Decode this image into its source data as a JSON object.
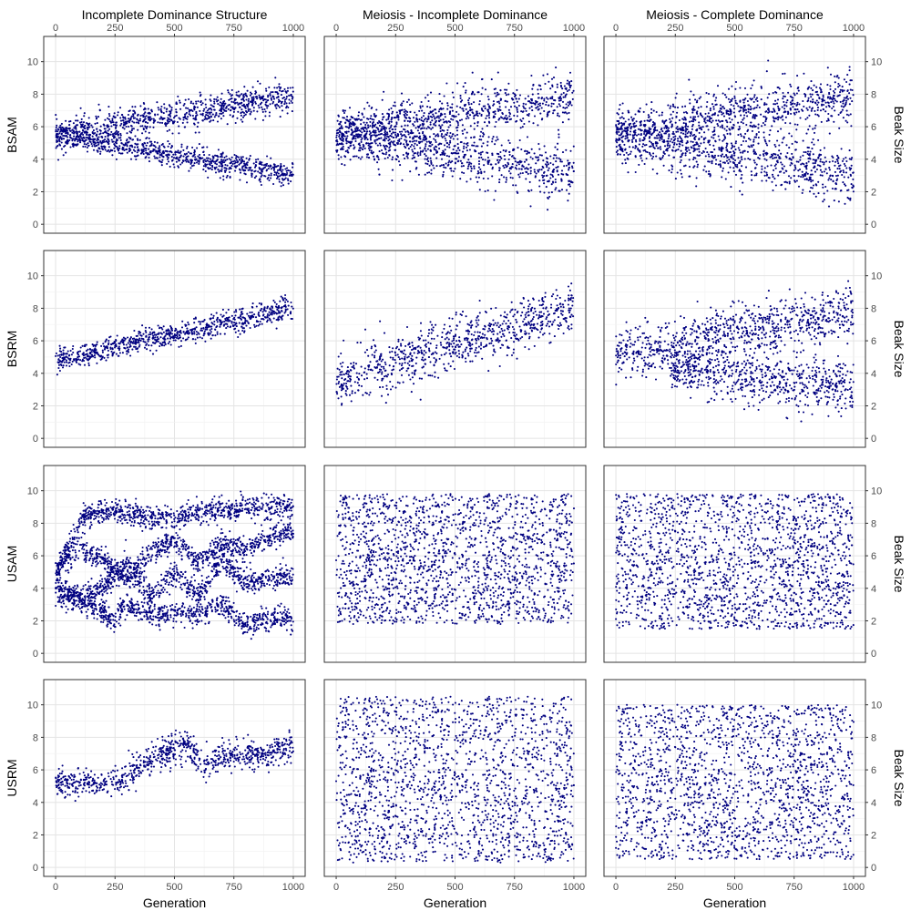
{
  "chart_data": {
    "type": "scatter",
    "facet": "grid",
    "rows": [
      "BSAM",
      "BSRM",
      "USAM",
      "USRM"
    ],
    "columns": [
      "Incomplete Dominance Structure",
      "Meiosis - Incomplete Dominance",
      "Meiosis - Complete Dominance"
    ],
    "xlabel": "Generation",
    "ylabel_right": "Beak Size",
    "xlim": [
      0,
      1000
    ],
    "ylim": [
      0,
      11
    ],
    "x_ticks": [
      0,
      250,
      500,
      750,
      1000
    ],
    "y_ticks": [
      0,
      2,
      4,
      6,
      8,
      10
    ],
    "grid": true,
    "point_color": "#000080",
    "panels": [
      {
        "row": "BSAM",
        "column": "Incomplete Dominance Structure",
        "bands": [
          {
            "x": [
              0,
              1000
            ],
            "y0": [
              5.5,
              7.9
            ],
            "y1": [
              5.5,
              7.9
            ],
            "spread": 0.45
          },
          {
            "x": [
              0,
              1000
            ],
            "y0": [
              5.5,
              3.0
            ],
            "y1": [
              5.5,
              3.0
            ],
            "spread": 0.35
          }
        ]
      },
      {
        "row": "BSAM",
        "column": "Meiosis - Incomplete Dominance",
        "bands": [
          {
            "x": [
              0,
              1000
            ],
            "y0": [
              5.5,
              7.8
            ],
            "y1": [
              5.5,
              7.8
            ],
            "spread": 0.8
          },
          {
            "x": [
              0,
              1000
            ],
            "y0": [
              5.5,
              3.1
            ],
            "y1": [
              5.5,
              3.1
            ],
            "spread": 0.8
          }
        ]
      },
      {
        "row": "BSAM",
        "column": "Meiosis - Complete Dominance",
        "bands": [
          {
            "x": [
              0,
              1000
            ],
            "y0": [
              5.5,
              7.9
            ],
            "y1": [
              5.5,
              7.9
            ],
            "spread": 0.8
          },
          {
            "x": [
              0,
              1000
            ],
            "y0": [
              5.5,
              3.0
            ],
            "y1": [
              5.5,
              3.0
            ],
            "spread": 0.85
          }
        ]
      },
      {
        "row": "BSRM",
        "column": "Incomplete Dominance Structure",
        "bands": [
          {
            "x": [
              0,
              1000
            ],
            "y0": [
              4.8,
              8.0
            ],
            "y1": [
              4.8,
              8.0
            ],
            "spread": 0.35
          }
        ]
      },
      {
        "row": "BSRM",
        "column": "Meiosis - Incomplete Dominance",
        "bands": [
          {
            "x": [
              0,
              1000
            ],
            "y0": [
              3.5,
              8.0
            ],
            "y1": [
              3.5,
              8.0
            ],
            "spread": 0.8
          }
        ]
      },
      {
        "row": "BSRM",
        "column": "Meiosis - Complete Dominance",
        "bands": [
          {
            "x": [
              0,
              1000
            ],
            "y0": [
              5.0,
              8.0
            ],
            "y1": [
              5.0,
              8.0
            ],
            "spread": 0.75
          },
          {
            "x": [
              230,
              1000
            ],
            "y0": [
              4.3,
              3.0
            ],
            "y1": [
              4.3,
              3.0
            ],
            "spread": 0.8
          }
        ]
      },
      {
        "row": "USAM",
        "column": "Incomplete Dominance Structure",
        "bands": [
          {
            "x": [
              0,
              120,
              250,
              400,
              550,
              650,
              750,
              850,
              1000
            ],
            "y0": [
              5.0,
              8.5,
              8.8,
              8.3,
              8.6,
              8.8,
              8.9,
              9.0,
              9.0
            ],
            "spread": 0.35
          },
          {
            "x": [
              0,
              100,
              200,
              300,
              400,
              500,
              600,
              700,
              800,
              900,
              1000
            ],
            "y0": [
              5.0,
              6.5,
              5.8,
              4.5,
              6.2,
              7.0,
              5.5,
              6.8,
              6.3,
              7.2,
              7.5
            ],
            "spread": 0.35
          },
          {
            "x": [
              0,
              100,
              200,
              300,
              400,
              500,
              600,
              700,
              800,
              900,
              1000
            ],
            "y0": [
              4.0,
              3.5,
              4.0,
              5.5,
              3.5,
              5.0,
              3.5,
              5.8,
              4.3,
              4.6,
              4.8
            ],
            "spread": 0.35
          },
          {
            "x": [
              0,
              150,
              250,
              300,
              350,
              420,
              500,
              600,
              700,
              800,
              900,
              1000
            ],
            "y0": [
              3.8,
              3.0,
              2.0,
              3.2,
              2.5,
              2.2,
              2.6,
              2.4,
              3.0,
              1.6,
              2.2,
              2.0
            ],
            "spread": 0.35
          }
        ]
      },
      {
        "row": "USAM",
        "column": "Meiosis - Incomplete Dominance",
        "bands": [
          {
            "x": [
              0,
              1000
            ],
            "y0": [
              1.8,
              2.0
            ],
            "y1": [
              9.8,
              9.8
            ],
            "spread": 0.0
          }
        ]
      },
      {
        "row": "USAM",
        "column": "Meiosis - Complete Dominance",
        "bands": [
          {
            "x": [
              0,
              1000
            ],
            "y0": [
              1.5,
              1.5
            ],
            "y1": [
              9.8,
              9.8
            ],
            "spread": 0.0
          }
        ]
      },
      {
        "row": "USRM",
        "column": "Incomplete Dominance Structure",
        "bands": [
          {
            "x": [
              0,
              100,
              250,
              350,
              450,
              550,
              620,
              700,
              800,
              900,
              1000
            ],
            "y0": [
              5.2,
              5.2,
              5.3,
              6.0,
              7.0,
              7.5,
              6.3,
              6.8,
              6.9,
              7.0,
              7.5
            ],
            "spread": 0.45
          }
        ]
      },
      {
        "row": "USRM",
        "column": "Meiosis - Incomplete Dominance",
        "bands": [
          {
            "x": [
              0,
              1000
            ],
            "y0": [
              0.3,
              0.3
            ],
            "y1": [
              10.5,
              10.5
            ],
            "spread": 0.0
          }
        ]
      },
      {
        "row": "USRM",
        "column": "Meiosis - Complete Dominance",
        "bands": [
          {
            "x": [
              0,
              1000
            ],
            "y0": [
              0.5,
              0.5
            ],
            "y1": [
              10.0,
              10.0
            ],
            "spread": 0.0
          }
        ]
      }
    ]
  }
}
